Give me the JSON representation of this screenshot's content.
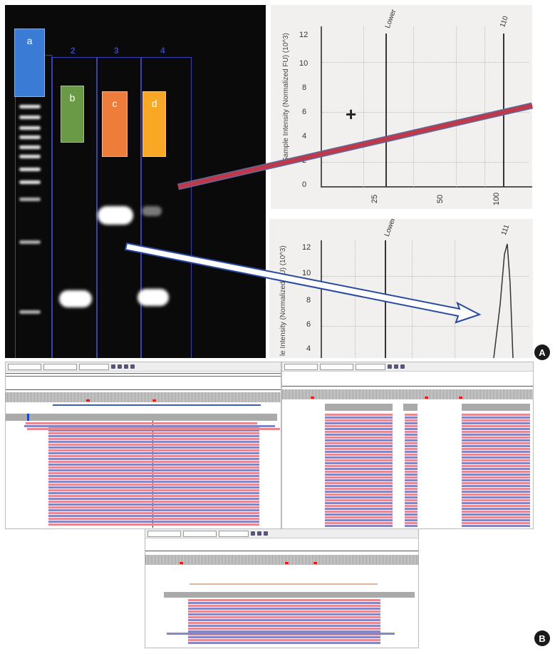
{
  "panel_labels": {
    "a": "A",
    "b": "B"
  },
  "gel": {
    "lane_numbers": [
      "2",
      "3",
      "4"
    ],
    "tags": [
      {
        "text": "a",
        "color": "#3a7bd5"
      },
      {
        "text": "b",
        "color": "#6a9a46"
      },
      {
        "text": "c",
        "color": "#ee7d3c"
      },
      {
        "text": "d",
        "color": "#f9a826"
      }
    ]
  },
  "electropherogram_top": {
    "y_ticks": [
      "0",
      "2",
      "4",
      "6",
      "8",
      "10",
      "12"
    ],
    "x_ticks": [
      "25",
      "50",
      "100"
    ],
    "y_label": "Sample Intensity (Normalized FU) (10^3)",
    "peak_labels": [
      "Lower",
      "110"
    ]
  },
  "electropherogram_bottom": {
    "y_ticks": [
      "4",
      "6",
      "8",
      "10",
      "12"
    ],
    "y_label": "le Intensity (Normalized FU) (10^3)",
    "peak_labels": [
      "Lower",
      "111"
    ]
  },
  "arrow_colors": {
    "red": "#c0394b",
    "white_outline": "#2a4aa0"
  }
}
